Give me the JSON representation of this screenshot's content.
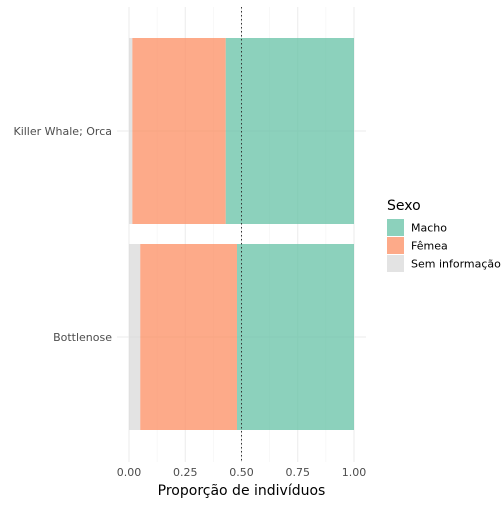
{
  "chart_data": {
    "type": "bar",
    "orientation": "horizontal",
    "stacked": true,
    "categories": [
      "Killer Whale; Orca",
      "Bottlenose"
    ],
    "series": [
      {
        "name": "Sem informação",
        "color": "#d9d9d9",
        "values": [
          0.015,
          0.05
        ]
      },
      {
        "name": "Fêmea",
        "color": "#fc8d62",
        "values": [
          0.415,
          0.43
        ]
      },
      {
        "name": "Macho",
        "color": "#66c2a5",
        "values": [
          0.57,
          0.52
        ]
      }
    ],
    "xlabel": "Proporção de indivíduos",
    "ylabel": "",
    "xlim": [
      0,
      1
    ],
    "x_ticks": [
      0,
      0.25,
      0.5,
      0.75,
      1
    ],
    "x_tick_labels": [
      "0.00",
      "0.25",
      "0.50",
      "0.75",
      "1.00"
    ],
    "reference_line": {
      "x": 0.5,
      "style": "dotted"
    },
    "legend": {
      "title": "Sexo",
      "placement": "right",
      "items": [
        "Macho",
        "Fêmea",
        "Sem informação"
      ]
    },
    "grid": true,
    "bar_opacity": 0.75
  }
}
